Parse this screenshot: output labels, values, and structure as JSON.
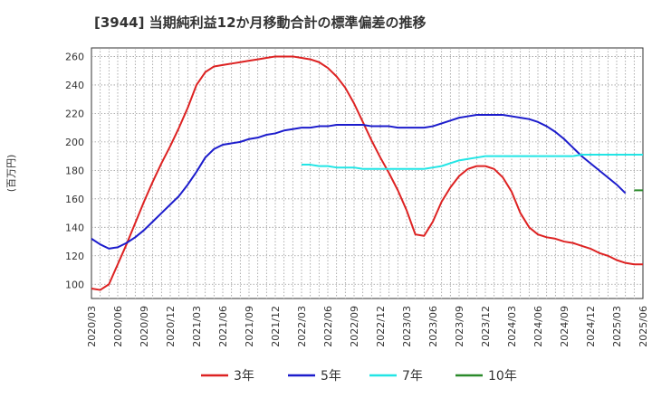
{
  "title": "[3944]  当期純利益12か月移動合計の標準偏差の推移",
  "chart_data": {
    "type": "line",
    "title": "[3944]  当期純利益12か月移動合計の標準偏差の推移",
    "ylabel": "(百万円)",
    "xlabel": "",
    "ylim": [
      90,
      266
    ],
    "yticks": [
      100,
      120,
      140,
      160,
      180,
      200,
      220,
      240,
      260
    ],
    "xticks": [
      "2020/03",
      "2020/06",
      "2020/09",
      "2020/12",
      "2021/03",
      "2021/06",
      "2021/09",
      "2021/12",
      "2022/03",
      "2022/06",
      "2022/09",
      "2022/12",
      "2023/03",
      "2023/06",
      "2023/09",
      "2023/12",
      "2024/03",
      "2024/06",
      "2024/09",
      "2024/12",
      "2025/03",
      "2025/06"
    ],
    "x_start": "2020/03",
    "grid": true,
    "legend_position": "bottom",
    "series": [
      {
        "name": "3年",
        "color": "#dd2222",
        "start_index": 0,
        "values": [
          97,
          96,
          100,
          114,
          128,
          143,
          158,
          172,
          185,
          197,
          210,
          224,
          240,
          249,
          253,
          254,
          255,
          256,
          257,
          258,
          259,
          260,
          260,
          260,
          259,
          258,
          256,
          252,
          246,
          238,
          227,
          214,
          201,
          189,
          178,
          166,
          152,
          135,
          134,
          144,
          158,
          168,
          176,
          181,
          183,
          183,
          181,
          175,
          165,
          150,
          140,
          135,
          133,
          132,
          130,
          129,
          127,
          125,
          122,
          120,
          117,
          115,
          114,
          114
        ]
      },
      {
        "name": "5年",
        "color": "#1c1ccc",
        "start_index": 0,
        "values": [
          132,
          128,
          125,
          126,
          129,
          133,
          138,
          144,
          150,
          156,
          162,
          170,
          179,
          189,
          195,
          198,
          199,
          200,
          202,
          203,
          205,
          206,
          208,
          209,
          210,
          210,
          211,
          211,
          212,
          212,
          212,
          212,
          211,
          211,
          211,
          210,
          210,
          210,
          210,
          211,
          213,
          215,
          217,
          218,
          219,
          219,
          219,
          219,
          218,
          217,
          216,
          214,
          211,
          207,
          202,
          196,
          190,
          185,
          180,
          175,
          170,
          164
        ]
      },
      {
        "name": "7年",
        "color": "#22e5e5",
        "start_index": 24,
        "values": [
          184,
          184,
          183,
          183,
          182,
          182,
          182,
          181,
          181,
          181,
          181,
          181,
          181,
          181,
          181,
          182,
          183,
          185,
          187,
          188,
          189,
          190,
          190,
          190,
          190,
          190,
          190,
          190,
          190,
          190,
          190,
          190,
          191,
          191,
          191,
          191,
          191,
          191,
          191,
          191
        ]
      },
      {
        "name": "10年",
        "color": "#2a8a2a",
        "start_index": 62,
        "values": [
          166,
          166
        ]
      }
    ]
  }
}
